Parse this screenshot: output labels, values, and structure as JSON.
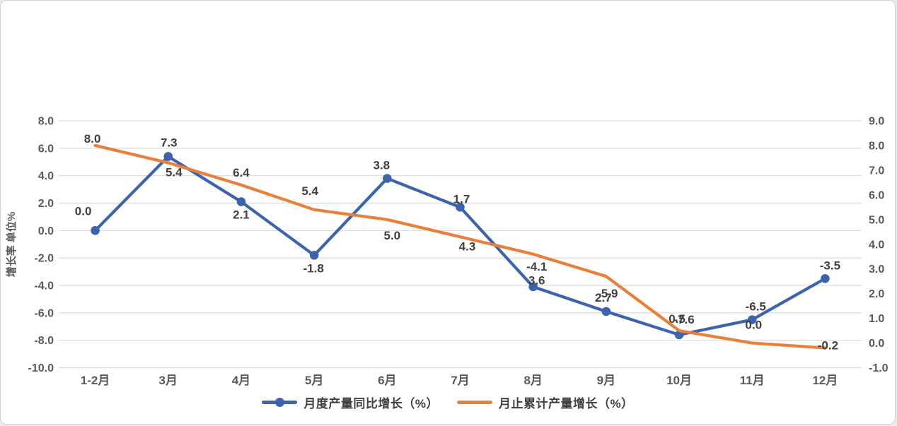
{
  "chart_data": {
    "type": "line",
    "categories": [
      "1-2月",
      "3月",
      "4月",
      "5月",
      "6月",
      "7月",
      "8月",
      "9月",
      "10月",
      "11月",
      "12月"
    ],
    "series": [
      {
        "name": "月度产量同比增长（%）",
        "axis": "left",
        "color": "#3B63AE",
        "marker": "circle",
        "values": [
          0.0,
          5.4,
          2.1,
          -1.8,
          3.8,
          1.7,
          -4.1,
          -5.9,
          -7.6,
          -6.5,
          -3.5
        ],
        "labels": [
          "0.0",
          "5.4",
          "2.1",
          "-1.8",
          "3.8",
          "1.7",
          "-4.1",
          "-5.9",
          "-7.6",
          "-6.5",
          "-3.5"
        ],
        "label_offsets": [
          [
            -17,
            -28
          ],
          [
            8,
            22
          ],
          [
            0,
            18
          ],
          [
            -1,
            18
          ],
          [
            -8,
            -19
          ],
          [
            2,
            -12
          ],
          [
            5,
            -29
          ],
          [
            2,
            -26
          ],
          [
            7,
            -22
          ],
          [
            5,
            -19
          ],
          [
            7,
            -19
          ]
        ]
      },
      {
        "name": "月止累计产量增长（%）",
        "axis": "right",
        "color": "#E8803A",
        "marker": "none",
        "values": [
          8.0,
          7.3,
          6.4,
          5.4,
          5.0,
          4.3,
          3.6,
          2.7,
          0.5,
          0.0,
          -0.2
        ],
        "labels": [
          "8.0",
          "7.3",
          "6.4",
          "5.4",
          "5.0",
          "4.3",
          "3.6",
          "2.7",
          "0.5",
          "0.0",
          "-0.2"
        ],
        "label_offsets": [
          [
            -4,
            -10
          ],
          [
            1,
            -29
          ],
          [
            0,
            -18
          ],
          [
            -6,
            -27
          ],
          [
            7,
            22
          ],
          [
            10,
            13
          ],
          [
            5,
            37
          ],
          [
            -4,
            30
          ],
          [
            -3,
            -17
          ],
          [
            2,
            -26
          ],
          [
            4,
            -4
          ]
        ]
      }
    ],
    "left_axis": {
      "title": "增长率 单位%",
      "min": -10,
      "max": 8,
      "step": 2,
      "ticks": [
        "8.0",
        "6.0",
        "4.0",
        "2.0",
        "0.0",
        "-2.0",
        "-4.0",
        "-6.0",
        "-8.0",
        "-10.0"
      ]
    },
    "right_axis": {
      "min": -1,
      "max": 9,
      "step": 1,
      "ticks": [
        "9.0",
        "8.0",
        "7.0",
        "6.0",
        "5.0",
        "4.0",
        "3.0",
        "2.0",
        "1.0",
        "0.0",
        "-1.0"
      ]
    },
    "grid": true,
    "legend_position": "bottom",
    "colors": {
      "gridline": "#D9D9D9",
      "tick_text": "#595959",
      "data_label_text": "#404040",
      "background": "#FFFFFF",
      "border": "#D2D2D2"
    }
  }
}
